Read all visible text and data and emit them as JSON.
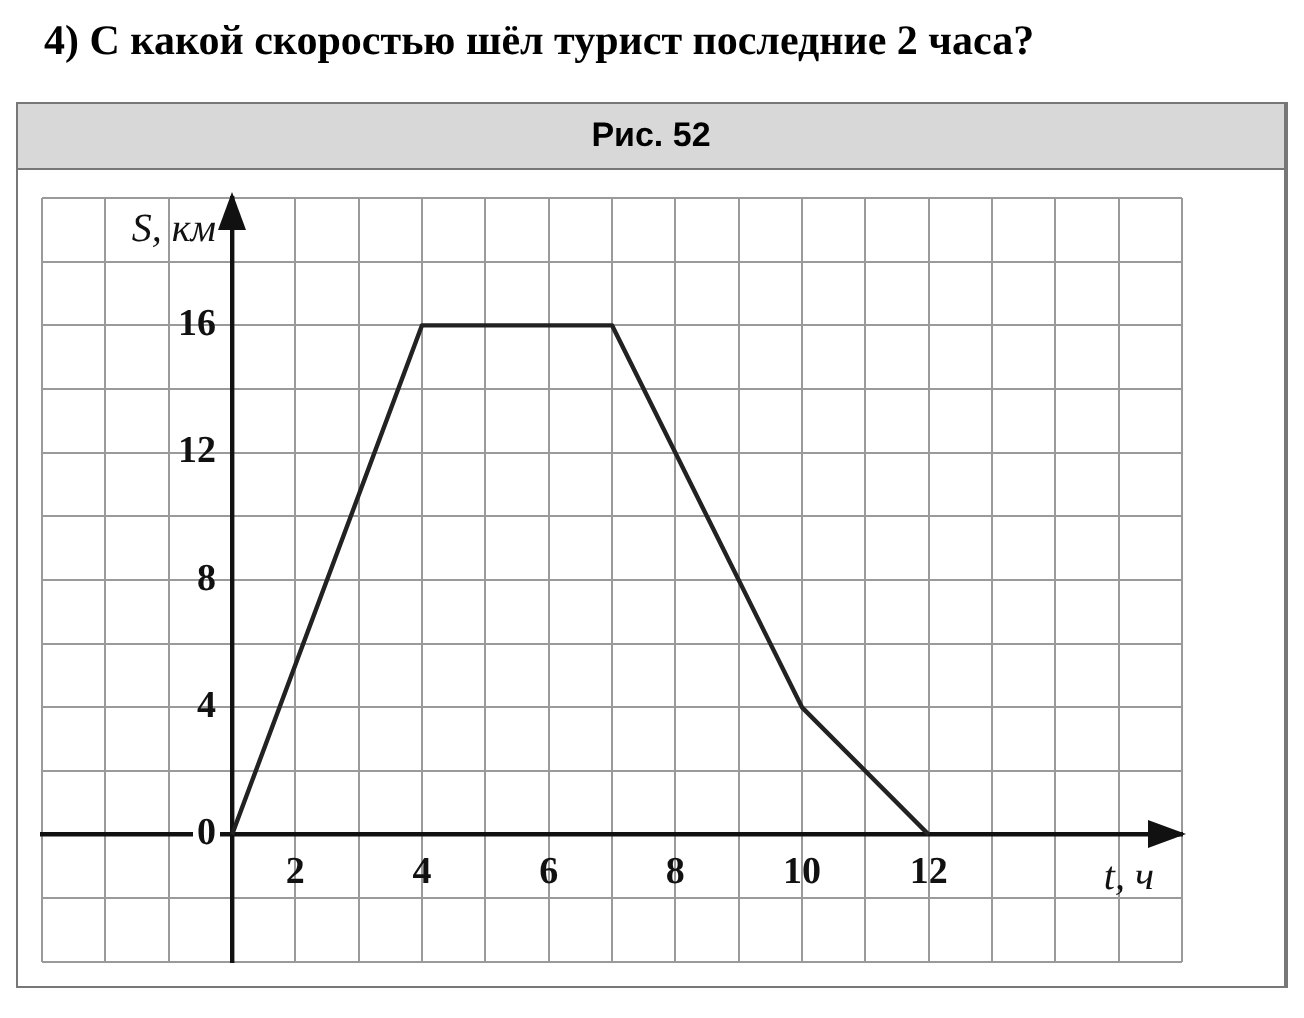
{
  "chart_data": {
    "type": "line",
    "title": "4) С какой скоростью шёл турист последние 2 часа?",
    "subtitle": "Рис. 52",
    "xlabel": "t, ч",
    "ylabel": "S, км",
    "xlim": [
      -2,
      16
    ],
    "ylim": [
      -4,
      20
    ],
    "xticks": [
      {
        "value": -2,
        "label": null
      },
      {
        "value": -1,
        "label": null
      },
      {
        "value": 0,
        "label": null
      },
      {
        "value": 1,
        "label": null
      },
      2,
      {
        "value": 3,
        "label": null
      },
      4,
      {
        "value": 5,
        "label": null
      },
      6,
      {
        "value": 7,
        "label": null
      },
      8,
      {
        "value": 9,
        "label": null
      },
      10,
      {
        "value": 11,
        "label": null
      },
      12,
      {
        "value": 13,
        "label": null
      },
      {
        "value": 14,
        "label": null
      },
      {
        "value": 15,
        "label": null
      },
      {
        "value": 16,
        "label": null
      }
    ],
    "yticks": [
      {
        "value": -4,
        "label": null
      },
      {
        "value": -2,
        "label": null
      },
      0,
      {
        "value": 2,
        "label": null
      },
      4,
      {
        "value": 6,
        "label": null
      },
      8,
      {
        "value": 10,
        "label": null
      },
      12,
      {
        "value": 14,
        "label": null
      },
      16,
      {
        "value": 18,
        "label": null
      },
      {
        "value": 20,
        "label": null
      }
    ],
    "grid": true,
    "marker": "none",
    "line_style": "solid",
    "series": [
      {
        "color": "#222222",
        "x": [
          1,
          4,
          7,
          10,
          12
        ],
        "values": [
          0,
          16,
          16,
          4,
          0
        ]
      }
    ]
  }
}
